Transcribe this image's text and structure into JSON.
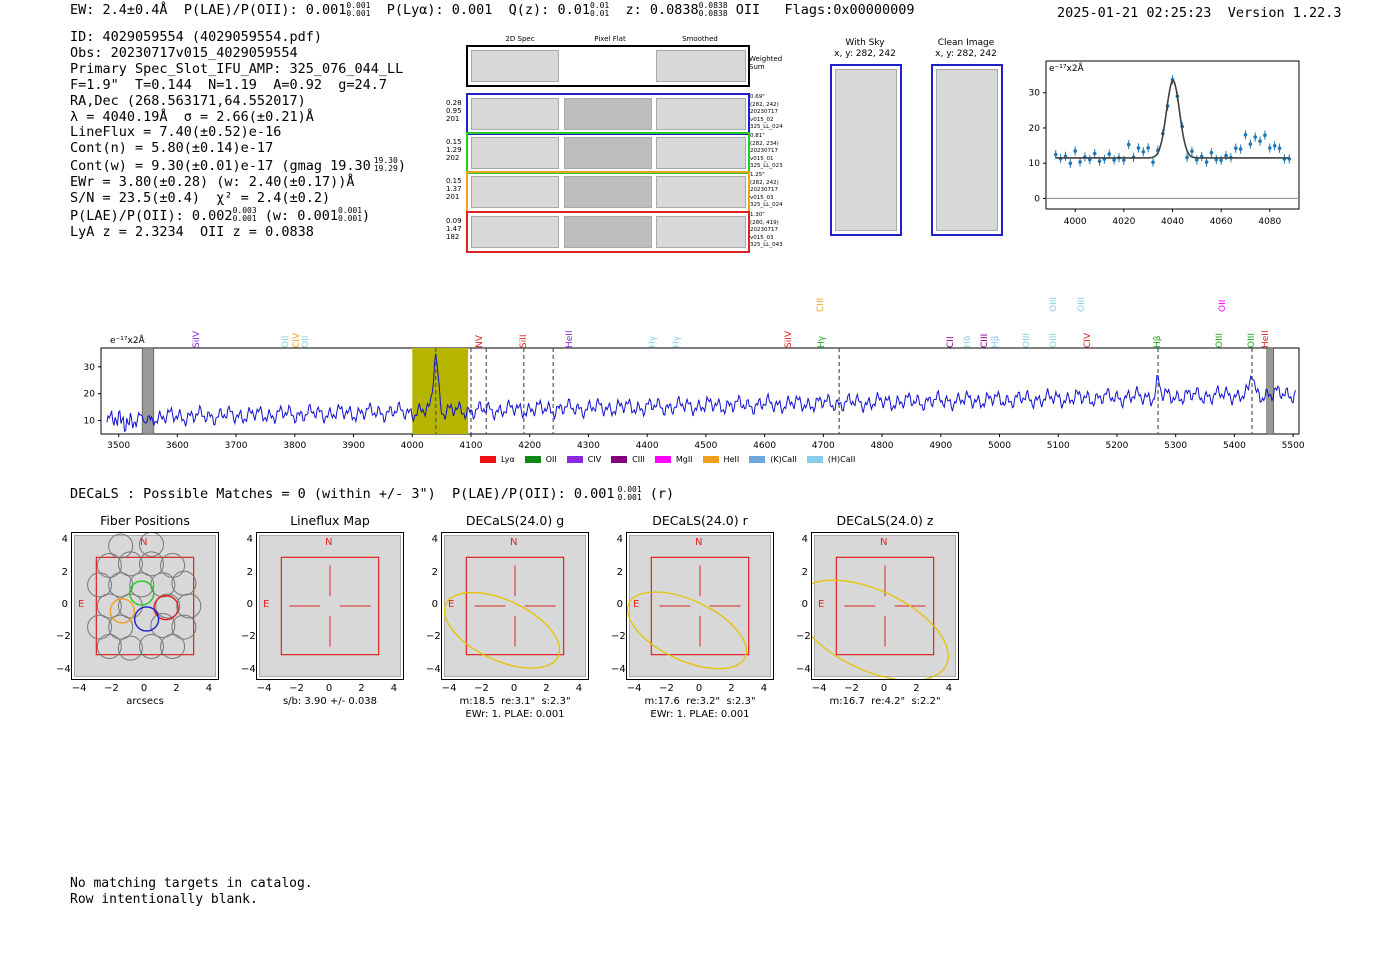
{
  "header": {
    "ew": "EW: 2.4±0.4Å",
    "plae": "P(LAE)/P(OII): 0.001",
    "plae_sup": "0.001",
    "plae_sub": "0.001",
    "plya": "P(Lyα): 0.001",
    "qz": "Q(z): 0.01",
    "qz_sup": "0.01",
    "qz_sub": "0.01",
    "z": "z: 0.0838",
    "z_sup": "0.0838",
    "z_sub": "0.0838",
    "z_line": "OII",
    "flags": "Flags:0x00000009",
    "timestamp": "2025-01-21 02:25:23",
    "version": "Version 1.22.3"
  },
  "info": [
    "ID: 4029059554 (4029059554.pdf)",
    "Obs: 20230717v015_4029059554",
    "Primary Spec_Slot_IFU_AMP: 325_076_044_LL",
    "F=1.9\"  T=0.144  N=1.19  A=0.92  g=24.7",
    "RA,Dec (268.563171,64.552017)",
    "λ = 4040.19Å  σ = 2.66(±0.21)Å",
    "LineFlux = 7.40(±0.52)e-16",
    "Cont(n) = 5.80(±0.14)e-17",
    "Cont(w) = 9.30(±0.01)e-17 (gmag 19.30",
    "EWr = 3.80(±0.28) (w: 2.40(±0.17))Å",
    "S/N = 23.5(±0.4)  χ² = 2.4(±0.2)",
    "P(LAE)/P(OII): 0.002",
    "LyA z = 2.3234  OII z = 0.0838"
  ],
  "info_sup": {
    "gmag_sup": "19.30",
    "gmag_sub": "19.29",
    "plae_sup": "0.003",
    "plae_sub": "0.001",
    "plae_w": "(w: 0.001",
    "plae_w_sup": "0.001",
    "plae_w_sub": "0.001"
  },
  "cutouts": {
    "col_titles": [
      "2D Spec",
      "Pixel Flat",
      "Smoothed"
    ],
    "weighted_label": "Weighted Sum",
    "rows": [
      {
        "vals": [
          "0.28",
          "0.95",
          "201"
        ],
        "side": [
          "0.69\"",
          "(282, 242)",
          "20230717",
          "v015_02",
          "325_LL_024"
        ],
        "color": "#1f1fcc"
      },
      {
        "vals": [
          "0.15",
          "1.29",
          "202"
        ],
        "side": [
          "0.81\"",
          "(282, 234)",
          "20230717",
          "v015_01",
          "325_LL_023"
        ],
        "color": "#22cc22"
      },
      {
        "vals": [
          "0.15",
          "1.37",
          "201"
        ],
        "side": [
          "1.25\"",
          "(282, 242)",
          "20230717",
          "v015_03",
          "325_LL_024"
        ],
        "color": "#f0a020"
      },
      {
        "vals": [
          "0.09",
          "1.47",
          "182"
        ],
        "side": [
          "1.30\"",
          "(280, 419)",
          "20230717",
          "v015_03",
          "325_LL_043"
        ],
        "color": "#dd2222"
      }
    ]
  },
  "sky": {
    "title1": "With Sky",
    "coord1": "x, y: 282, 242",
    "title2": "Clean Image",
    "coord2": "x, y: 282, 242"
  },
  "zoom_chart": {
    "unit": "e⁻¹⁷x2Å"
  },
  "full_chart": {
    "unit": "e⁻¹⁷x2Å"
  },
  "line_labels": [
    {
      "t": "SiIV",
      "c": "#8a2be2",
      "x": 198,
      "row": 2
    },
    {
      "t": "OII",
      "c": "#87ceeb",
      "x": 287,
      "row": 2
    },
    {
      "t": "CIV",
      "c": "#f0a020",
      "x": 298,
      "row": 2
    },
    {
      "t": "OII",
      "c": "#87ceeb",
      "x": 307,
      "row": 2
    },
    {
      "t": "NV",
      "c": "#dd2222",
      "x": 481,
      "row": 2
    },
    {
      "t": "SiII",
      "c": "#dd2222",
      "x": 525,
      "row": 2
    },
    {
      "t": "HeII",
      "c": "#8a2be2",
      "x": 571,
      "row": 2
    },
    {
      "t": "Hγ",
      "c": "#87ceeb",
      "x": 654,
      "row": 2
    },
    {
      "t": "Hγ",
      "c": "#87ceeb",
      "x": 678,
      "row": 2
    },
    {
      "t": "SiIV",
      "c": "#dd2222",
      "x": 790,
      "row": 2
    },
    {
      "t": "CIII",
      "c": "#f0a020",
      "x": 822,
      "row": 1
    },
    {
      "t": "Hγ",
      "c": "#22aa22",
      "x": 823,
      "row": 2
    },
    {
      "t": "CII",
      "c": "#800080",
      "x": 952,
      "row": 2
    },
    {
      "t": "Hδ",
      "c": "#87ceeb",
      "x": 969,
      "row": 2
    },
    {
      "t": "CIII",
      "c": "#800080",
      "x": 986,
      "row": 2
    },
    {
      "t": "Hβ",
      "c": "#87ceeb",
      "x": 997,
      "row": 2
    },
    {
      "t": "OIII",
      "c": "#87ceeb",
      "x": 1028,
      "row": 2
    },
    {
      "t": "OIII",
      "c": "#87ceeb",
      "x": 1055,
      "row": 1
    },
    {
      "t": "OIII",
      "c": "#87ceeb",
      "x": 1055,
      "row": 2
    },
    {
      "t": "OIII",
      "c": "#87ceeb",
      "x": 1083,
      "row": 1
    },
    {
      "t": "CIV",
      "c": "#dd2222",
      "x": 1089,
      "row": 2
    },
    {
      "t": "Hβ",
      "c": "#22aa22",
      "x": 1159,
      "row": 2
    },
    {
      "t": "OII",
      "c": "#ff00ff",
      "x": 1224,
      "row": 1
    },
    {
      "t": "OIII",
      "c": "#22aa22",
      "x": 1221,
      "row": 2
    },
    {
      "t": "OIII",
      "c": "#22aa22",
      "x": 1253,
      "row": 2
    },
    {
      "t": "HeII",
      "c": "#dd2222",
      "x": 1267,
      "row": 2
    }
  ],
  "legend": [
    {
      "label": "Lyα",
      "color": "#ee1111"
    },
    {
      "label": "OII",
      "color": "#118811"
    },
    {
      "label": "CIV",
      "color": "#8a2be2"
    },
    {
      "label": "CIII",
      "color": "#800080"
    },
    {
      "label": "MgII",
      "color": "#ff00ff"
    },
    {
      "label": "HeII",
      "color": "#f0a020"
    },
    {
      "label": "(K)CaII",
      "color": "#6fa8dc"
    },
    {
      "label": "(H)CaII",
      "color": "#87ceeb"
    }
  ],
  "decals": {
    "line": "DECaLS : Possible Matches = 0 (within +/- 3\")  P(LAE)/P(OII): 0.001",
    "sup": "0.001",
    "sub": "0.001",
    "tail": "(r)"
  },
  "panels": [
    {
      "title": "Fiber Positions",
      "cap1": "arcsecs",
      "cap2": ""
    },
    {
      "title": "Lineflux Map",
      "cap1": "s/b: 3.90 +/- 0.038",
      "cap2": ""
    },
    {
      "title": "DECaLS(24.0) g",
      "cap1": "m:18.5  re:3.1\"  s:2.3\"",
      "cap2": "EWr: 1. PLAE: 0.001"
    },
    {
      "title": "DECaLS(24.0) r",
      "cap1": "m:17.6  re:3.2\"  s:2.3\"",
      "cap2": "EWr: 1. PLAE: 0.001"
    },
    {
      "title": "DECaLS(24.0) z",
      "cap1": "m:16.7  re:4.2\"  s:2.2\"",
      "cap2": ""
    }
  ],
  "panel_ticks": {
    "y": [
      "4",
      "2",
      "0",
      "−2",
      "−4"
    ],
    "x": [
      "−4",
      "−2",
      "0",
      "2",
      "4"
    ],
    "n": "N",
    "e": "E"
  },
  "footer": [
    "No matching targets in catalog.",
    "Row intentionally blank."
  ]
}
